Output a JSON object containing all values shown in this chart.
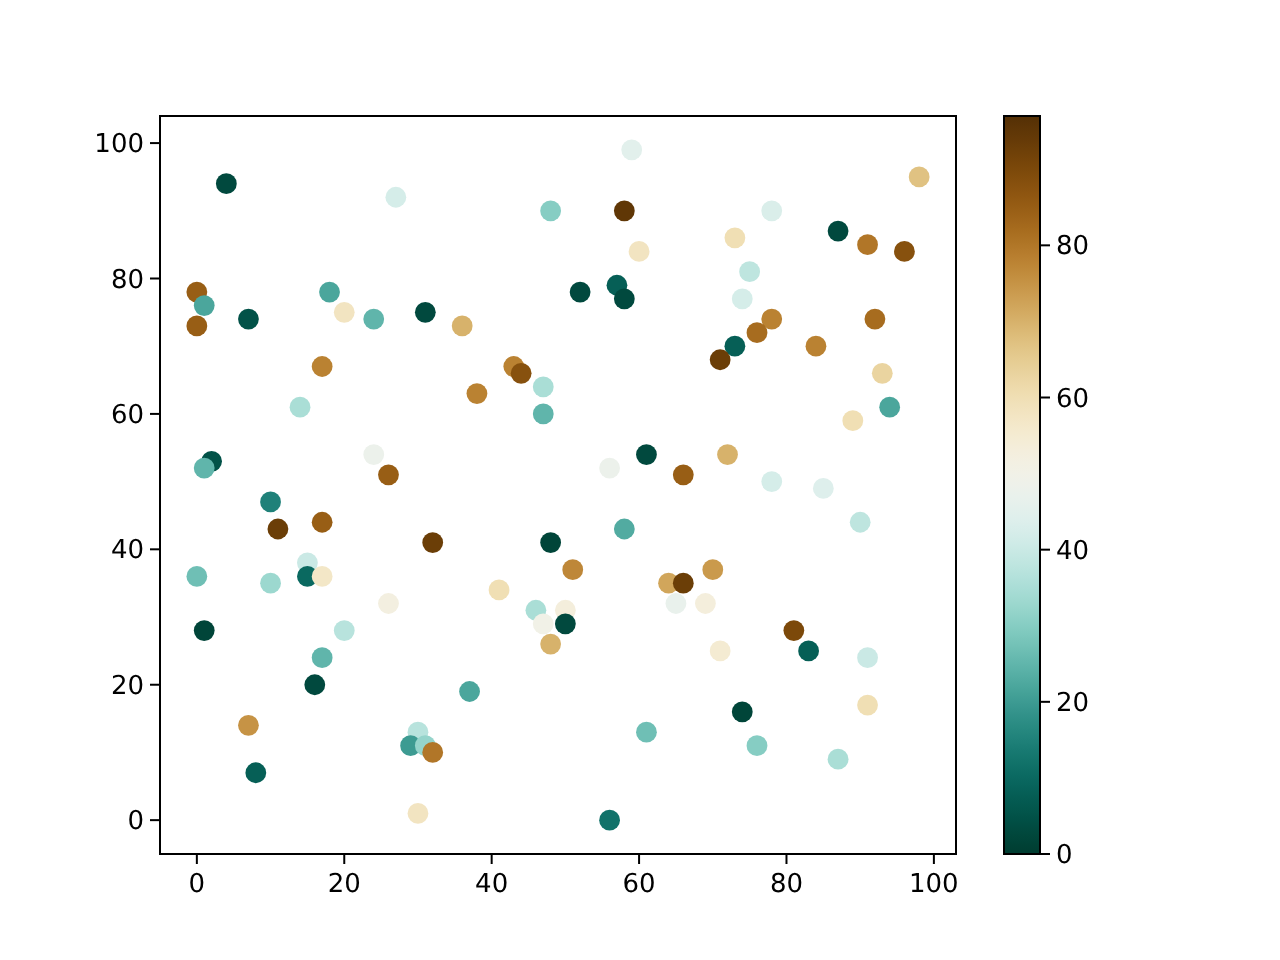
{
  "chart_data": {
    "type": "scatter",
    "marker": "circle",
    "x": [
      4,
      27,
      48,
      0,
      1,
      0,
      7,
      18,
      20,
      24,
      31,
      36,
      17,
      43,
      44,
      47,
      38,
      47,
      14,
      2,
      1,
      24,
      26,
      59,
      58,
      78,
      98,
      73,
      60,
      87,
      91,
      96,
      75,
      74,
      52,
      57,
      58,
      78,
      76,
      73,
      71,
      92,
      84,
      93,
      89,
      94,
      61,
      56,
      72,
      66,
      78,
      85,
      10,
      11,
      17,
      32,
      48,
      15,
      15,
      17,
      0,
      10,
      26,
      41,
      46,
      50,
      47,
      50,
      48,
      1,
      20,
      17,
      16,
      37,
      7,
      8,
      30,
      29,
      31,
      32,
      30,
      90,
      58,
      51,
      64,
      66,
      70,
      65,
      69,
      81,
      83,
      71,
      91,
      91,
      74,
      61,
      76,
      87,
      56
    ],
    "values": [
      94,
      92,
      90,
      78,
      76,
      73,
      74,
      78,
      75,
      74,
      75,
      73,
      67,
      67,
      66,
      64,
      63,
      60,
      61,
      53,
      52,
      54,
      51,
      99,
      90,
      90,
      95,
      86,
      84,
      87,
      85,
      84,
      81,
      77,
      78,
      79,
      77,
      74,
      72,
      70,
      68,
      74,
      70,
      66,
      59,
      61,
      54,
      52,
      54,
      51,
      50,
      49,
      47,
      43,
      44,
      41,
      41,
      38,
      36,
      36,
      36,
      35,
      32,
      34,
      31,
      31,
      29,
      29,
      26,
      28,
      28,
      24,
      20,
      19,
      14,
      7,
      13,
      11,
      11,
      10,
      1,
      44,
      43,
      37,
      35,
      35,
      37,
      32,
      32,
      28,
      25,
      25,
      24,
      17,
      16,
      13,
      11,
      9,
      0
    ],
    "cvalues": [
      3,
      42,
      30,
      85,
      22,
      85,
      5,
      22,
      58,
      25,
      3,
      70,
      78,
      78,
      88,
      35,
      78,
      25,
      35,
      5,
      25,
      48,
      85,
      45,
      95,
      43,
      67,
      60,
      58,
      3,
      80,
      88,
      38,
      42,
      3,
      8,
      3,
      78,
      82,
      8,
      93,
      82,
      78,
      63,
      60,
      22,
      3,
      48,
      70,
      85,
      42,
      44,
      15,
      93,
      85,
      93,
      2,
      40,
      10,
      57,
      27,
      33,
      52,
      60,
      35,
      53,
      50,
      3,
      70,
      2,
      37,
      25,
      3,
      22,
      75,
      8,
      37,
      20,
      32,
      80,
      58,
      38,
      23,
      77,
      72,
      93,
      74,
      47,
      53,
      90,
      8,
      55,
      40,
      60,
      2,
      27,
      30,
      35,
      12
    ],
    "xlim": [
      -5,
      103
    ],
    "ylim": [
      -5,
      104
    ],
    "xticks": [
      0,
      20,
      40,
      60,
      80,
      100
    ],
    "yticks": [
      0,
      20,
      40,
      60,
      80,
      100
    ],
    "clim": [
      0,
      97
    ],
    "cticks": [
      0,
      20,
      40,
      60,
      80
    ]
  }
}
